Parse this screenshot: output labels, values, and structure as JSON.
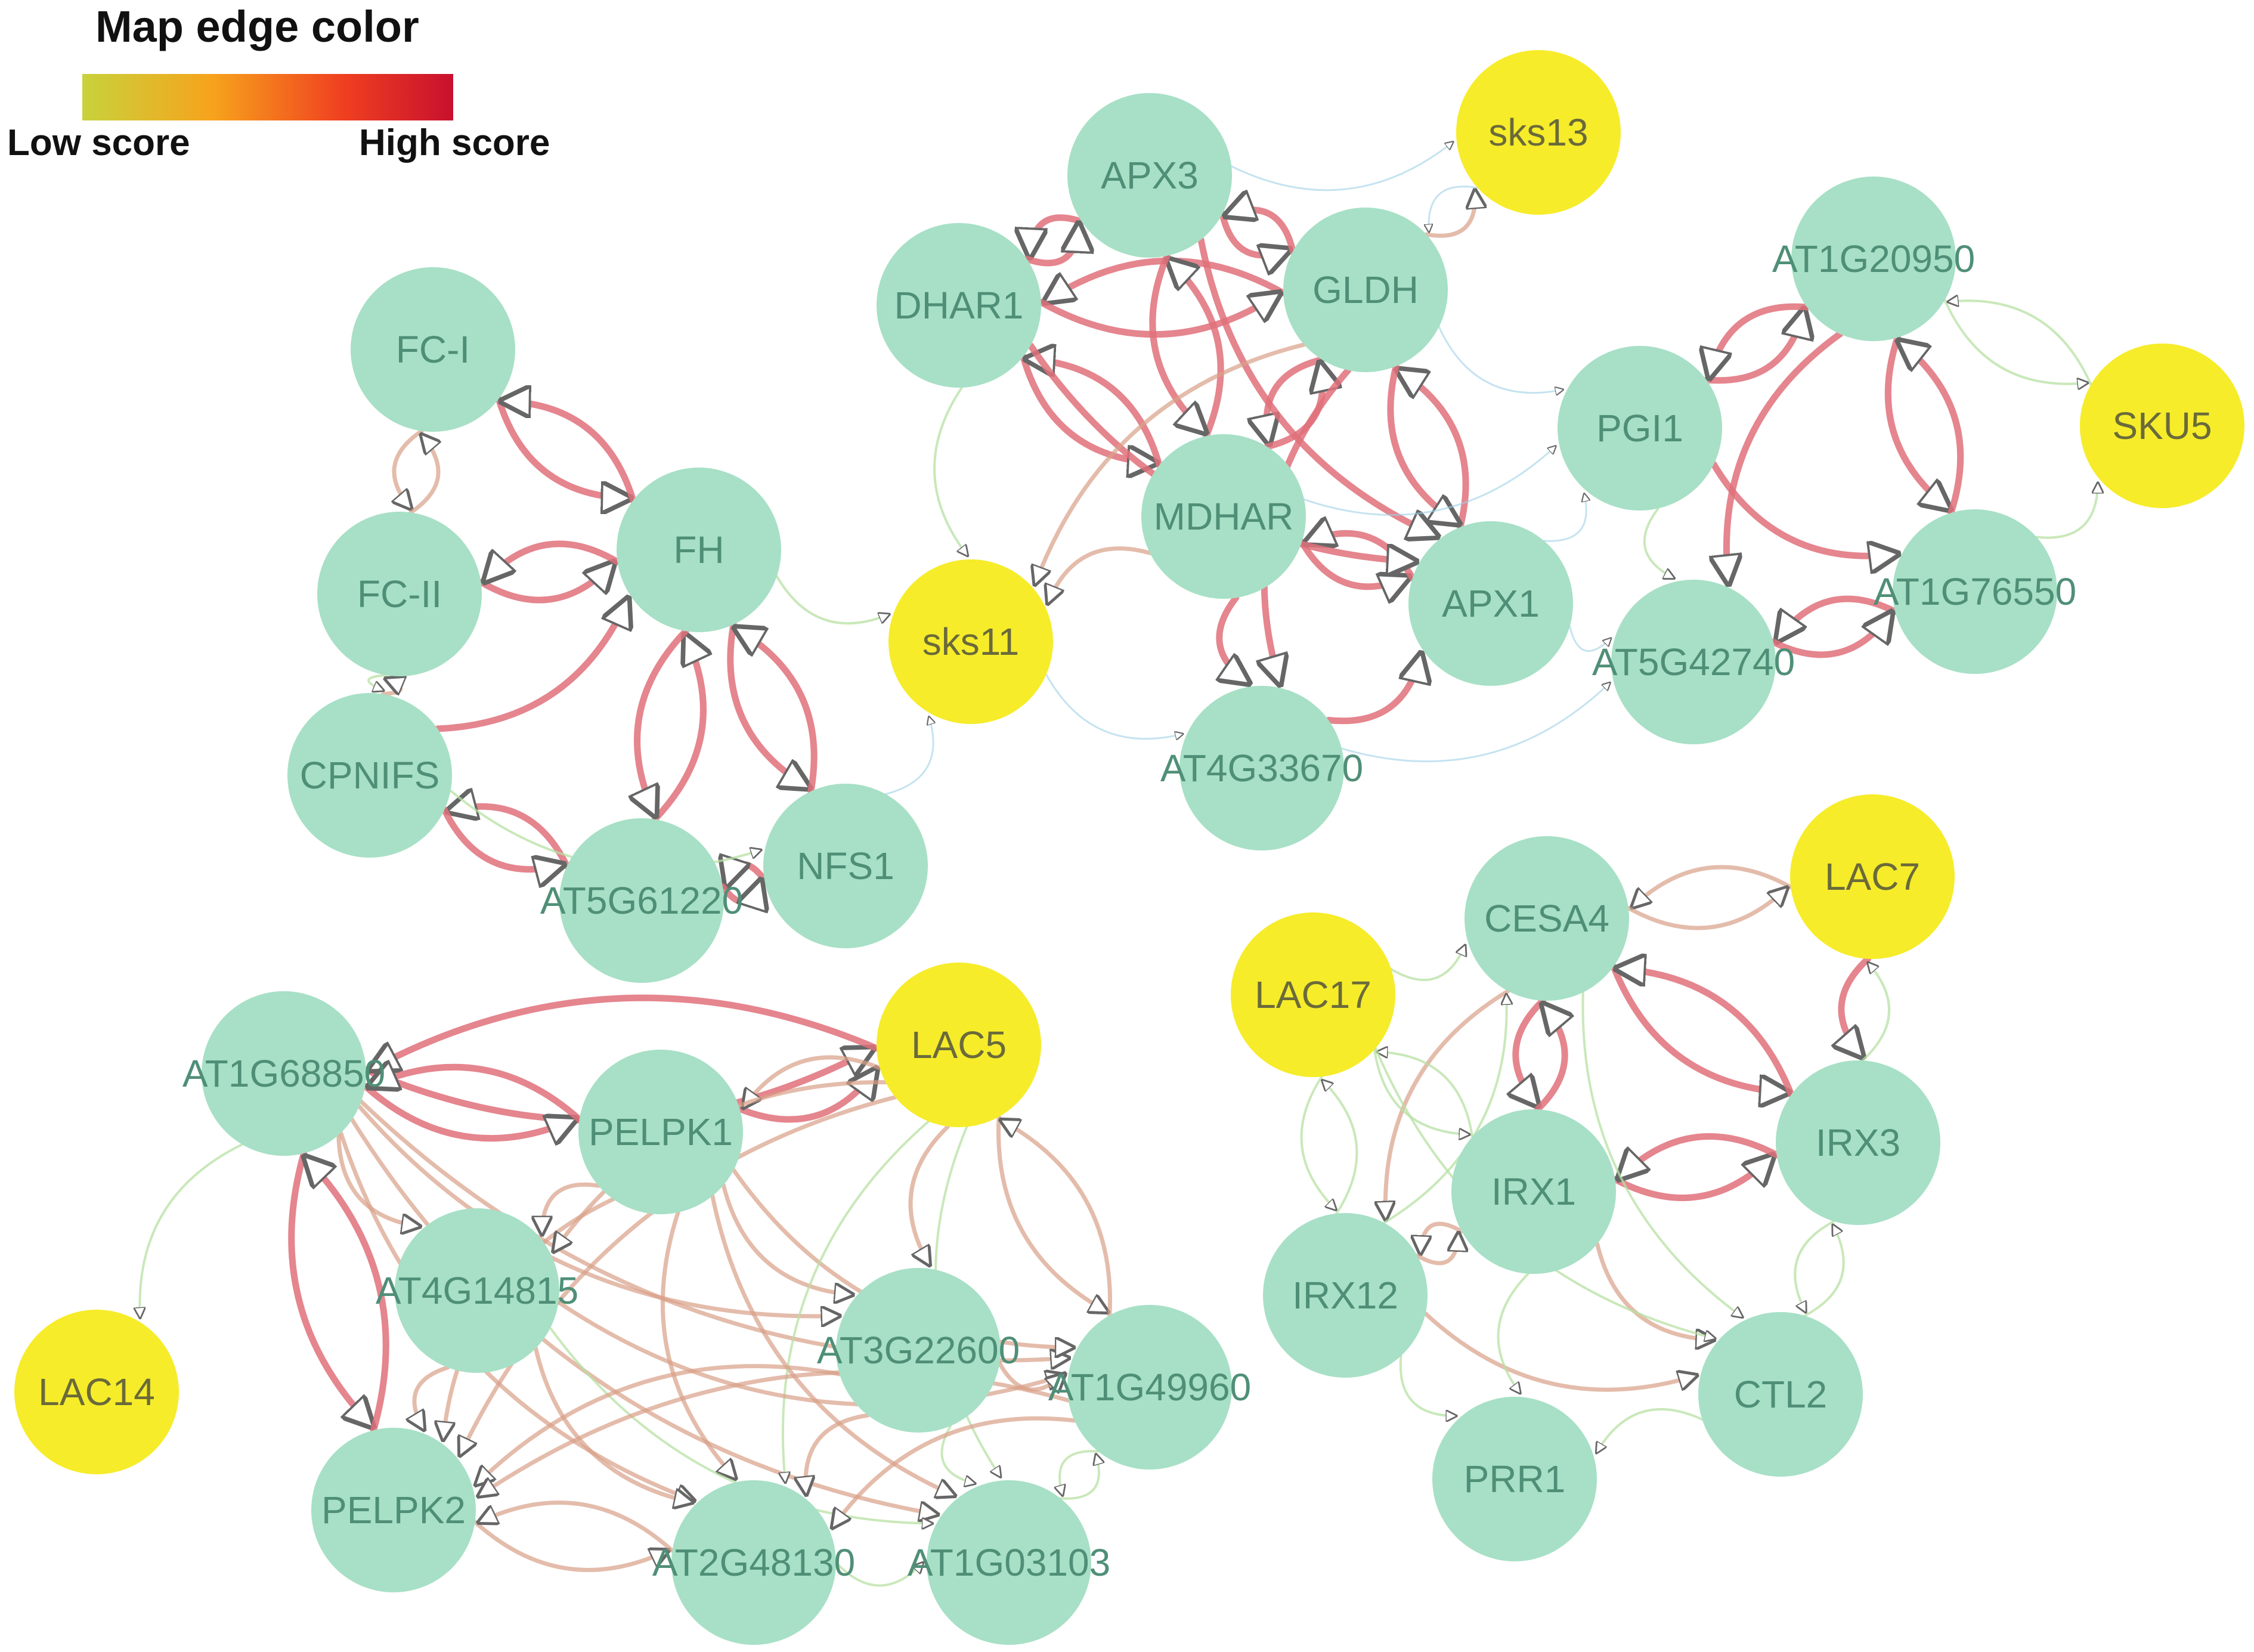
{
  "legend": {
    "title": "Map edge color",
    "low_label": "Low score",
    "high_label": "High score",
    "gradient": [
      "#c8d23c",
      "#f7a31c",
      "#f04020",
      "#c8102e"
    ]
  },
  "colors": {
    "node_default": "#a7e0c6",
    "node_highlight": "#f6ec2a",
    "label_default": "#4f8f77",
    "label_highlight": "#6a6a3a",
    "edge_high": "#e0707a",
    "edge_mid": "#d9a088",
    "edge_low": "#b7e0a3",
    "edge_faint": "#9fd0e6"
  },
  "nodes": [
    {
      "id": "FC-I",
      "label": "FC-I",
      "highlight": false
    },
    {
      "id": "FC-II",
      "label": "FC-II",
      "highlight": false
    },
    {
      "id": "FH",
      "label": "FH",
      "highlight": false
    },
    {
      "id": "CPNIFS",
      "label": "CPNIFS",
      "highlight": false
    },
    {
      "id": "AT5G61220",
      "label": "AT5G61220",
      "highlight": false
    },
    {
      "id": "NFS1",
      "label": "NFS1",
      "highlight": false
    },
    {
      "id": "sks11",
      "label": "sks11",
      "highlight": true
    },
    {
      "id": "APX3",
      "label": "APX3",
      "highlight": false
    },
    {
      "id": "sks13",
      "label": "sks13",
      "highlight": true
    },
    {
      "id": "DHAR1",
      "label": "DHAR1",
      "highlight": false
    },
    {
      "id": "GLDH",
      "label": "GLDH",
      "highlight": false
    },
    {
      "id": "MDHAR",
      "label": "MDHAR",
      "highlight": false
    },
    {
      "id": "APX1",
      "label": "APX1",
      "highlight": false
    },
    {
      "id": "AT4G33670",
      "label": "AT4G33670",
      "highlight": false
    },
    {
      "id": "PGI1",
      "label": "PGI1",
      "highlight": false
    },
    {
      "id": "AT1G20950",
      "label": "AT1G20950",
      "highlight": false
    },
    {
      "id": "SKU5",
      "label": "SKU5",
      "highlight": true
    },
    {
      "id": "AT5G42740",
      "label": "AT5G42740",
      "highlight": false
    },
    {
      "id": "AT1G76550",
      "label": "AT1G76550",
      "highlight": false
    },
    {
      "id": "AT1G68850",
      "label": "AT1G68850",
      "highlight": false
    },
    {
      "id": "PELPK1",
      "label": "PELPK1",
      "highlight": false
    },
    {
      "id": "LAC5",
      "label": "LAC5",
      "highlight": true
    },
    {
      "id": "AT4G14815",
      "label": "AT4G14815",
      "highlight": false
    },
    {
      "id": "AT3G22600",
      "label": "AT3G22600",
      "highlight": false
    },
    {
      "id": "AT1G49960",
      "label": "AT1G49960",
      "highlight": false
    },
    {
      "id": "LAC14",
      "label": "LAC14",
      "highlight": true
    },
    {
      "id": "PELPK2",
      "label": "PELPK2",
      "highlight": false
    },
    {
      "id": "AT2G48130",
      "label": "AT2G48130",
      "highlight": false
    },
    {
      "id": "AT1G03103",
      "label": "AT1G03103",
      "highlight": false
    },
    {
      "id": "CESA4",
      "label": "CESA4",
      "highlight": false
    },
    {
      "id": "LAC7",
      "label": "LAC7",
      "highlight": true
    },
    {
      "id": "LAC17",
      "label": "LAC17",
      "highlight": true
    },
    {
      "id": "IRX3",
      "label": "IRX3",
      "highlight": false
    },
    {
      "id": "IRX1",
      "label": "IRX1",
      "highlight": false
    },
    {
      "id": "IRX12",
      "label": "IRX12",
      "highlight": false
    },
    {
      "id": "CTL2",
      "label": "CTL2",
      "highlight": false
    },
    {
      "id": "PRR1",
      "label": "PRR1",
      "highlight": false
    }
  ],
  "edges": [
    {
      "source": "FC-I",
      "target": "FC-II",
      "score": "mid"
    },
    {
      "source": "FC-I",
      "target": "FH",
      "score": "high"
    },
    {
      "source": "FC-II",
      "target": "FC-I",
      "score": "mid"
    },
    {
      "source": "FC-II",
      "target": "FH",
      "score": "high"
    },
    {
      "source": "FH",
      "target": "FC-II",
      "score": "high"
    },
    {
      "source": "FH",
      "target": "FC-I",
      "score": "high"
    },
    {
      "source": "CPNIFS",
      "target": "FC-II",
      "score": "mid"
    },
    {
      "source": "CPNIFS",
      "target": "FH",
      "score": "high"
    },
    {
      "source": "FC-II",
      "target": "CPNIFS",
      "score": "low"
    },
    {
      "source": "AT5G61220",
      "target": "FH",
      "score": "high"
    },
    {
      "source": "AT5G61220",
      "target": "CPNIFS",
      "score": "high"
    },
    {
      "source": "CPNIFS",
      "target": "AT5G61220",
      "score": "high"
    },
    {
      "source": "FH",
      "target": "AT5G61220",
      "score": "high"
    },
    {
      "source": "FH",
      "target": "NFS1",
      "score": "high"
    },
    {
      "source": "NFS1",
      "target": "FH",
      "score": "high"
    },
    {
      "source": "NFS1",
      "target": "AT5G61220",
      "score": "high"
    },
    {
      "source": "AT5G61220",
      "target": "NFS1",
      "score": "high"
    },
    {
      "source": "CPNIFS",
      "target": "NFS1",
      "score": "low"
    },
    {
      "source": "NFS1",
      "target": "sks11",
      "score": "faint"
    },
    {
      "source": "FH",
      "target": "sks11",
      "score": "low"
    },
    {
      "source": "APX3",
      "target": "DHAR1",
      "score": "high"
    },
    {
      "source": "DHAR1",
      "target": "APX3",
      "score": "high"
    },
    {
      "source": "APX3",
      "target": "GLDH",
      "score": "high"
    },
    {
      "source": "GLDH",
      "target": "APX3",
      "score": "high"
    },
    {
      "source": "GLDH",
      "target": "DHAR1",
      "score": "high"
    },
    {
      "source": "DHAR1",
      "target": "GLDH",
      "score": "high"
    },
    {
      "source": "DHAR1",
      "target": "MDHAR",
      "score": "high"
    },
    {
      "source": "MDHAR",
      "target": "DHAR1",
      "score": "high"
    },
    {
      "source": "MDHAR",
      "target": "APX3",
      "score": "high"
    },
    {
      "source": "APX3",
      "target": "MDHAR",
      "score": "high"
    },
    {
      "source": "GLDH",
      "target": "MDHAR",
      "score": "high"
    },
    {
      "source": "MDHAR",
      "target": "GLDH",
      "score": "high"
    },
    {
      "source": "MDHAR",
      "target": "APX1",
      "score": "high"
    },
    {
      "source": "APX1",
      "target": "MDHAR",
      "score": "high"
    },
    {
      "source": "APX1",
      "target": "GLDH",
      "score": "high"
    },
    {
      "source": "GLDH",
      "target": "APX1",
      "score": "high"
    },
    {
      "source": "DHAR1",
      "target": "APX1",
      "score": "high"
    },
    {
      "source": "APX3",
      "target": "APX1",
      "score": "high"
    },
    {
      "source": "MDHAR",
      "target": "AT4G33670",
      "score": "high"
    },
    {
      "source": "GLDH",
      "target": "AT4G33670",
      "score": "high"
    },
    {
      "source": "AT4G33670",
      "target": "APX1",
      "score": "high"
    },
    {
      "source": "DHAR1",
      "target": "sks11",
      "score": "low"
    },
    {
      "source": "GLDH",
      "target": "sks11",
      "score": "mid"
    },
    {
      "source": "MDHAR",
      "target": "sks11",
      "score": "mid"
    },
    {
      "source": "APX3",
      "target": "sks13",
      "score": "faint"
    },
    {
      "source": "GLDH",
      "target": "sks13",
      "score": "mid"
    },
    {
      "source": "sks13",
      "target": "GLDH",
      "score": "faint"
    },
    {
      "source": "sks11",
      "target": "AT4G33670",
      "score": "faint"
    },
    {
      "source": "GLDH",
      "target": "PGI1",
      "score": "faint"
    },
    {
      "source": "APX1",
      "target": "PGI1",
      "score": "faint"
    },
    {
      "source": "MDHAR",
      "target": "PGI1",
      "score": "faint"
    },
    {
      "source": "PGI1",
      "target": "AT1G20950",
      "score": "high"
    },
    {
      "source": "AT1G20950",
      "target": "PGI1",
      "score": "high"
    },
    {
      "source": "PGI1",
      "target": "AT5G42740",
      "score": "low"
    },
    {
      "source": "PGI1",
      "target": "AT1G76550",
      "score": "high"
    },
    {
      "source": "AT1G20950",
      "target": "AT5G42740",
      "score": "high"
    },
    {
      "source": "AT1G20950",
      "target": "AT1G76550",
      "score": "high"
    },
    {
      "source": "AT1G76550",
      "target": "AT5G42740",
      "score": "high"
    },
    {
      "source": "AT5G42740",
      "target": "AT1G76550",
      "score": "high"
    },
    {
      "source": "AT1G76550",
      "target": "AT1G20950",
      "score": "high"
    },
    {
      "source": "AT1G20950",
      "target": "SKU5",
      "score": "low"
    },
    {
      "source": "AT1G76550",
      "target": "SKU5",
      "score": "low"
    },
    {
      "source": "SKU5",
      "target": "AT1G20950",
      "score": "low"
    },
    {
      "source": "APX1",
      "target": "AT5G42740",
      "score": "faint"
    },
    {
      "source": "AT4G33670",
      "target": "AT5G42740",
      "score": "faint"
    },
    {
      "source": "AT1G68850",
      "target": "LAC5",
      "score": "high"
    },
    {
      "source": "LAC5",
      "target": "AT1G68850",
      "score": "high"
    },
    {
      "source": "AT1G68850",
      "target": "PELPK1",
      "score": "high"
    },
    {
      "source": "PELPK1",
      "target": "AT1G68850",
      "score": "high"
    },
    {
      "source": "PELPK1",
      "target": "LAC5",
      "score": "high"
    },
    {
      "source": "LAC5",
      "target": "PELPK1",
      "score": "mid"
    },
    {
      "source": "AT1G68850",
      "target": "AT4G14815",
      "score": "mid"
    },
    {
      "source": "AT1G68850",
      "target": "AT3G22600",
      "score": "mid"
    },
    {
      "source": "AT1G68850",
      "target": "AT1G49960",
      "score": "mid"
    },
    {
      "source": "AT1G68850",
      "target": "PELPK2",
      "score": "high"
    },
    {
      "source": "PELPK2",
      "target": "AT1G68850",
      "score": "high"
    },
    {
      "source": "AT1G68850",
      "target": "AT2G48130",
      "score": "mid"
    },
    {
      "source": "AT1G68850",
      "target": "AT1G03103",
      "score": "mid"
    },
    {
      "source": "AT1G68850",
      "target": "LAC14",
      "score": "low"
    },
    {
      "source": "PELPK1",
      "target": "AT3G22600",
      "score": "mid"
    },
    {
      "source": "PELPK1",
      "target": "AT1G49960",
      "score": "mid"
    },
    {
      "source": "PELPK1",
      "target": "AT2G48130",
      "score": "mid"
    },
    {
      "source": "PELPK1",
      "target": "AT1G03103",
      "score": "mid"
    },
    {
      "source": "PELPK1",
      "target": "PELPK2",
      "score": "mid"
    },
    {
      "source": "PELPK1",
      "target": "AT4G14815",
      "score": "mid"
    },
    {
      "source": "LAC5",
      "target": "AT3G22600",
      "score": "mid"
    },
    {
      "source": "LAC5",
      "target": "AT1G49960",
      "score": "mid"
    },
    {
      "source": "LAC5",
      "target": "AT4G14815",
      "score": "mid"
    },
    {
      "source": "LAC5",
      "target": "PELPK2",
      "score": "mid"
    },
    {
      "source": "LAC5",
      "target": "AT2G48130",
      "score": "low"
    },
    {
      "source": "LAC5",
      "target": "AT1G03103",
      "score": "low"
    },
    {
      "source": "AT1G49960",
      "target": "LAC5",
      "score": "mid"
    },
    {
      "source": "AT4G14815",
      "target": "PELPK2",
      "score": "mid"
    },
    {
      "source": "AT4G14815",
      "target": "AT2G48130",
      "score": "mid"
    },
    {
      "source": "AT4G14815",
      "target": "AT1G49960",
      "score": "mid"
    },
    {
      "source": "AT4G14815",
      "target": "AT1G03103",
      "score": "low"
    },
    {
      "source": "AT3G22600",
      "target": "PELPK2",
      "score": "mid"
    },
    {
      "source": "AT3G22600",
      "target": "AT2G48130",
      "score": "mid"
    },
    {
      "source": "AT3G22600",
      "target": "AT1G49960",
      "score": "mid"
    },
    {
      "source": "AT3G22600",
      "target": "AT1G03103",
      "score": "low"
    },
    {
      "source": "AT1G49960",
      "target": "PELPK2",
      "score": "mid"
    },
    {
      "source": "AT1G49960",
      "target": "AT2G48130",
      "score": "mid"
    },
    {
      "source": "AT1G49960",
      "target": "AT1G03103",
      "score": "low"
    },
    {
      "source": "PELPK2",
      "target": "AT2G48130",
      "score": "mid"
    },
    {
      "source": "AT2G48130",
      "target": "PELPK2",
      "score": "mid"
    },
    {
      "source": "AT2G48130",
      "target": "AT1G03103",
      "score": "low"
    },
    {
      "source": "AT1G03103",
      "target": "AT1G49960",
      "score": "low"
    },
    {
      "source": "LAC7",
      "target": "CESA4",
      "score": "mid"
    },
    {
      "source": "CESA4",
      "target": "LAC7",
      "score": "mid"
    },
    {
      "source": "CESA4",
      "target": "IRX3",
      "score": "high"
    },
    {
      "source": "IRX3",
      "target": "CESA4",
      "score": "high"
    },
    {
      "source": "CESA4",
      "target": "IRX1",
      "score": "high"
    },
    {
      "source": "IRX1",
      "target": "CESA4",
      "score": "high"
    },
    {
      "source": "IRX1",
      "target": "IRX3",
      "score": "high"
    },
    {
      "source": "IRX3",
      "target": "IRX1",
      "score": "high"
    },
    {
      "source": "CESA4",
      "target": "IRX12",
      "score": "mid"
    },
    {
      "source": "IRX12",
      "target": "CESA4",
      "score": "low"
    },
    {
      "source": "IRX1",
      "target": "IRX12",
      "score": "mid"
    },
    {
      "source": "IRX12",
      "target": "IRX1",
      "score": "mid"
    },
    {
      "source": "IRX1",
      "target": "CTL2",
      "score": "mid"
    },
    {
      "source": "IRX3",
      "target": "CTL2",
      "score": "low"
    },
    {
      "source": "CTL2",
      "target": "IRX3",
      "score": "low"
    },
    {
      "source": "IRX12",
      "target": "CTL2",
      "score": "mid"
    },
    {
      "source": "IRX12",
      "target": "PRR1",
      "score": "low"
    },
    {
      "source": "IRX1",
      "target": "PRR1",
      "score": "low"
    },
    {
      "source": "CTL2",
      "target": "PRR1",
      "score": "low"
    },
    {
      "source": "LAC17",
      "target": "CESA4",
      "score": "low"
    },
    {
      "source": "LAC17",
      "target": "IRX1",
      "score": "low"
    },
    {
      "source": "IRX1",
      "target": "LAC17",
      "score": "low"
    },
    {
      "source": "LAC17",
      "target": "IRX12",
      "score": "low"
    },
    {
      "source": "IRX12",
      "target": "LAC17",
      "score": "low"
    },
    {
      "source": "LAC7",
      "target": "IRX3",
      "score": "high"
    },
    {
      "source": "IRX3",
      "target": "LAC7",
      "score": "low"
    },
    {
      "source": "CESA4",
      "target": "CTL2",
      "score": "low"
    },
    {
      "source": "LAC17",
      "target": "CTL2",
      "score": "low"
    }
  ]
}
